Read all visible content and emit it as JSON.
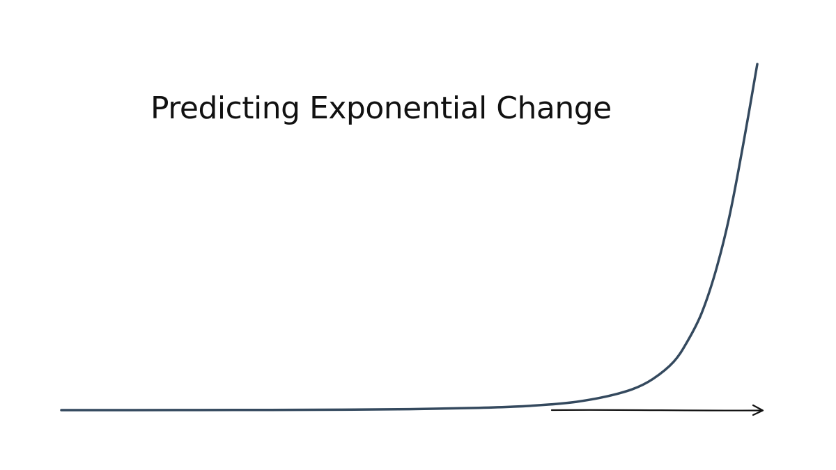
{
  "colors": {
    "curve": "#34495e",
    "arrow": "#111111",
    "background": "#ffffff"
  },
  "chart_data": {
    "type": "line",
    "title": "Predicting Exponential Change",
    "xlabel": "",
    "ylabel": "",
    "x": [
      0,
      0.1,
      0.2,
      0.3,
      0.4,
      0.5,
      0.6,
      0.65,
      0.7,
      0.74,
      0.78,
      0.82,
      0.85,
      0.88,
      0.9,
      0.92,
      0.94,
      0.96,
      0.98,
      1.0
    ],
    "series": [
      {
        "values": [
          0,
          0.0001,
          0.0003,
          0.0006,
          0.0013,
          0.0029,
          0.0066,
          0.01,
          0.016,
          0.024,
          0.038,
          0.06,
          0.09,
          0.14,
          0.2,
          0.28,
          0.4,
          0.56,
          0.77,
          1.0
        ]
      }
    ],
    "xlim": [
      0,
      1
    ],
    "ylim": [
      0,
      1
    ],
    "grid": false,
    "legend": "none",
    "axes": "x-arrow-only"
  }
}
